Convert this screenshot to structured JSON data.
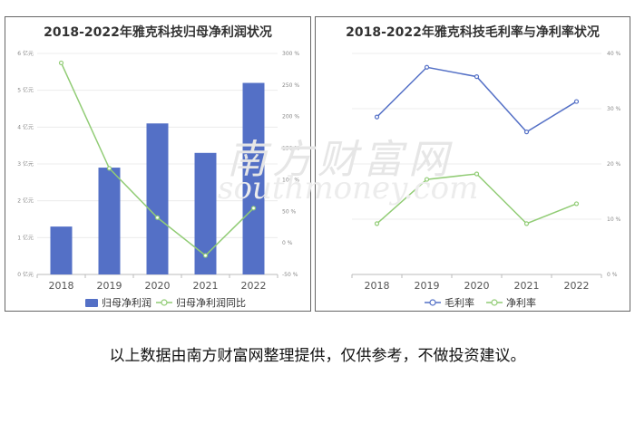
{
  "watermark": {
    "cn": "南方财富网",
    "en": "southmoney.com"
  },
  "footnote": "以上数据由南方财富网整理提供，仅供参考，不做投资建议。",
  "chart_data": [
    {
      "type": "bar",
      "title": "2018-2022年雅克科技归母净利润状况",
      "categories": [
        "2018",
        "2019",
        "2020",
        "2021",
        "2022"
      ],
      "series": [
        {
          "name": "归母净利润",
          "type": "bar",
          "axis": "left",
          "color": "#5470c6",
          "values": [
            1.3,
            2.9,
            4.1,
            3.3,
            5.2
          ]
        },
        {
          "name": "归母净利润同比",
          "type": "line",
          "axis": "right",
          "color": "#91cc75",
          "values": [
            285,
            118,
            40,
            -20,
            55
          ]
        }
      ],
      "y_left": {
        "min": 0,
        "max": 6,
        "ticks": [
          "0 亿元",
          "1 亿元",
          "2 亿元",
          "3 亿元",
          "4 亿元",
          "5 亿元",
          "6 亿元"
        ]
      },
      "y_right": {
        "min": -50,
        "max": 300,
        "ticks": [
          "-50 %",
          "0 %",
          "50 %",
          "100 %",
          "150 %",
          "200 %",
          "250 %",
          "300 %"
        ]
      },
      "legend": "bottom",
      "grid": true
    },
    {
      "type": "line",
      "title": "2018-2022年雅克科技毛利率与净利率状况",
      "categories": [
        "2018",
        "2019",
        "2020",
        "2021",
        "2022"
      ],
      "series": [
        {
          "name": "毛利率",
          "color": "#5470c6",
          "values": [
            28.5,
            37.5,
            35.8,
            25.8,
            31.3
          ]
        },
        {
          "name": "净利率",
          "color": "#91cc75",
          "values": [
            9.2,
            17.2,
            18.2,
            9.2,
            12.8
          ]
        }
      ],
      "y_right": {
        "min": 0,
        "max": 40,
        "ticks": [
          "0 %",
          "10 %",
          "20 %",
          "30 %",
          "40 %"
        ]
      },
      "legend": "bottom",
      "grid": true
    }
  ]
}
